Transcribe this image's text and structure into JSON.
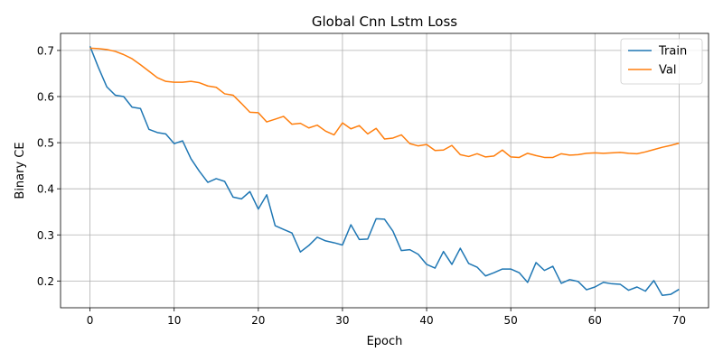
{
  "chart_data": {
    "type": "line",
    "title": "Global Cnn Lstm Loss",
    "xlabel": "Epoch",
    "ylabel": "Binary CE",
    "xlim": [
      -3.5,
      73.5
    ],
    "ylim": [
      0.142,
      0.737
    ],
    "xticks": [
      0,
      10,
      20,
      30,
      40,
      50,
      60,
      70
    ],
    "yticks": [
      0.2,
      0.3,
      0.4,
      0.5,
      0.6,
      0.7
    ],
    "grid": true,
    "legend_position": "top-right",
    "series": [
      {
        "name": "Train",
        "color": "#1f77b4",
        "values": [
          0.709,
          0.663,
          0.621,
          0.603,
          0.6,
          0.577,
          0.574,
          0.529,
          0.522,
          0.519,
          0.498,
          0.504,
          0.465,
          0.438,
          0.414,
          0.422,
          0.416,
          0.382,
          0.378,
          0.394,
          0.356,
          0.387,
          0.32,
          0.312,
          0.304,
          0.263,
          0.277,
          0.295,
          0.287,
          0.283,
          0.278,
          0.322,
          0.29,
          0.291,
          0.335,
          0.334,
          0.308,
          0.266,
          0.268,
          0.258,
          0.236,
          0.228,
          0.264,
          0.236,
          0.271,
          0.238,
          0.23,
          0.211,
          0.218,
          0.226,
          0.226,
          0.218,
          0.197,
          0.24,
          0.223,
          0.232,
          0.195,
          0.203,
          0.199,
          0.181,
          0.187,
          0.197,
          0.194,
          0.193,
          0.18,
          0.187,
          0.178,
          0.201,
          0.169,
          0.171,
          0.182
        ]
      },
      {
        "name": "Val",
        "color": "#ff7f0e",
        "values": [
          0.705,
          0.704,
          0.702,
          0.698,
          0.691,
          0.682,
          0.669,
          0.655,
          0.641,
          0.633,
          0.631,
          0.631,
          0.633,
          0.63,
          0.623,
          0.62,
          0.606,
          0.603,
          0.585,
          0.566,
          0.565,
          0.545,
          0.551,
          0.557,
          0.54,
          0.542,
          0.532,
          0.538,
          0.525,
          0.517,
          0.543,
          0.53,
          0.537,
          0.519,
          0.531,
          0.508,
          0.51,
          0.517,
          0.498,
          0.493,
          0.496,
          0.483,
          0.484,
          0.494,
          0.474,
          0.47,
          0.476,
          0.469,
          0.471,
          0.484,
          0.469,
          0.468,
          0.477,
          0.472,
          0.468,
          0.468,
          0.476,
          0.473,
          0.474,
          0.477,
          0.478,
          0.477,
          0.478,
          0.479,
          0.477,
          0.476,
          0.48,
          0.485,
          0.49,
          0.494,
          0.499
        ]
      }
    ]
  }
}
